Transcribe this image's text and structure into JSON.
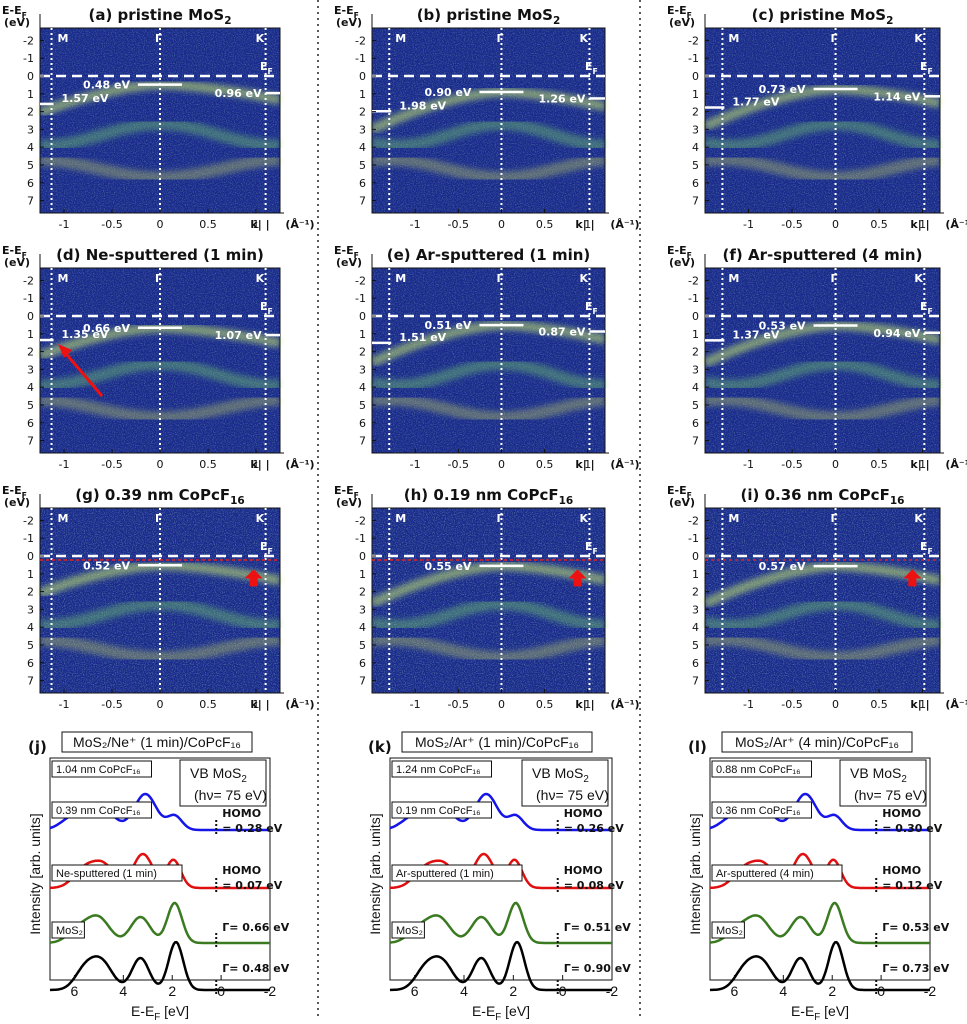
{
  "colors": {
    "map_bg": "#1a2a8c",
    "white": "#ffffff",
    "arrow_red": "#ee1111",
    "dash_red": "#dd2222",
    "curve_blue": "#1515e8",
    "curve_red": "#e01010",
    "curve_green": "#3a7a20",
    "curve_black": "#000000"
  },
  "arpes": {
    "ylabel_top": "E-E",
    "ylabel_sub": "F",
    "ylabel_unit": "(eV)",
    "y_ticks": [
      "-2",
      "-1",
      "0",
      "1",
      "2",
      "3",
      "4",
      "5",
      "6",
      "7"
    ],
    "x_ticks_left": [
      "-1",
      "-0.5",
      "0",
      "0.5",
      "1"
    ],
    "x_ticks_mid": [
      "-1",
      "-0.5",
      "0",
      "0.5",
      "1"
    ],
    "x_axis_label": "k| |",
    "x_unit": "(Å⁻¹)",
    "sym": {
      "M": "M",
      "G": "Γ",
      "K": "K"
    },
    "ef": "E",
    "ef_sub": "F",
    "panels": [
      {
        "title": "(a) pristine MoS",
        "sub": "2",
        "labels": [
          "0.48 eV",
          "1.57 eV",
          "0.96 eV"
        ]
      },
      {
        "title": "(b) pristine MoS",
        "sub": "2",
        "labels": [
          "0.90 eV",
          "1.98 eV",
          "1.26 eV"
        ]
      },
      {
        "title": "(c) pristine MoS",
        "sub": "2",
        "labels": [
          "0.73 eV",
          "1.77 eV",
          "1.14 eV"
        ]
      },
      {
        "title": "(d) Ne-sputtered (1 min)",
        "sub": "",
        "labels": [
          "0.66 eV",
          "1.35 eV",
          "1.07 eV"
        ]
      },
      {
        "title": "(e) Ar-sputtered (1 min)",
        "sub": "",
        "labels": [
          "0.51 eV",
          "1.51 eV",
          "0.87 eV"
        ]
      },
      {
        "title": "(f) Ar-sputtered (4 min)",
        "sub": "",
        "labels": [
          "0.53 eV",
          "1.37 eV",
          "0.94 eV"
        ]
      },
      {
        "title": "(g) 0.39 nm CoPcF",
        "sub": "16",
        "labels": [
          "0.52 eV"
        ]
      },
      {
        "title": "(h) 0.19 nm CoPcF",
        "sub": "16",
        "labels": [
          "0.55 eV"
        ]
      },
      {
        "title": "(i) 0.36 nm CoPcF",
        "sub": "16",
        "labels": [
          "0.57 eV"
        ]
      }
    ]
  },
  "spectra": {
    "ylabel": "Intensity [arb. units]",
    "xlabel": "E-E",
    "xlabel_sub": "F",
    "xlabel_unit": "[eV]",
    "x_ticks": [
      "6",
      "4",
      "2",
      "0",
      "-2"
    ],
    "vb": "VB MoS",
    "vb_sub": "2",
    "hv": "(hν= 75 eV)",
    "homo": "HOMO",
    "panels": [
      {
        "letter": "(j)",
        "header": "MoS₂/Ne⁺ (1 min)/CoPcF₁₆",
        "top_box": "1.04 nm CoPcF₁₆",
        "mid_box": "0.39 nm CoPcF₁₆",
        "sput_box": "Ne-sputtered (1 min)",
        "mos2_box": "MoS₂",
        "homo_blue": "= 0.28 eV",
        "homo_red": "= 0.07 eV",
        "gamma_green": "Γ= 0.66 eV",
        "gamma_black": "Γ= 0.48 eV"
      },
      {
        "letter": "(k)",
        "header": "MoS₂/Ar⁺ (1 min)/CoPcF₁₆",
        "top_box": "1.24 nm CoPcF₁₆",
        "mid_box": "0.19 nm CoPcF₁₆",
        "sput_box": "Ar-sputtered (1 min)",
        "mos2_box": "MoS₂",
        "homo_blue": "= 0.26 eV",
        "homo_red": "= 0.08 eV",
        "gamma_green": "Γ= 0.51 eV",
        "gamma_black": "Γ= 0.90 eV"
      },
      {
        "letter": "(l)",
        "header": "MoS₂/Ar⁺ (4 min)/CoPcF₁₆",
        "top_box": "0.88 nm CoPcF₁₆",
        "mid_box": "0.36 nm CoPcF₁₆",
        "sput_box": "Ar-sputtered (4 min)",
        "mos2_box": "MoS₂",
        "homo_blue": "= 0.30 eV",
        "homo_red": "= 0.12 eV",
        "gamma_green": "Γ= 0.53 eV",
        "gamma_black": "Γ= 0.73 eV"
      }
    ]
  }
}
